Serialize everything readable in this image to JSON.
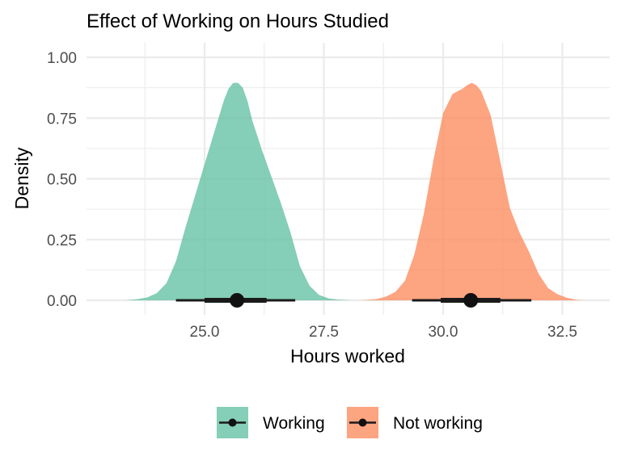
{
  "chart_data": {
    "type": "area",
    "title": "Effect of Working on Hours Studied",
    "xlabel": "Hours worked",
    "ylabel": "Density",
    "xlim": [
      23.0,
      33.2
    ],
    "ylim": [
      -0.04,
      1.08
    ],
    "x_ticks": [
      25.0,
      27.5,
      30.0,
      32.5
    ],
    "x_tick_labels": [
      "25.0",
      "27.5",
      "30.0",
      "32.5"
    ],
    "y_ticks": [
      0.0,
      0.25,
      0.5,
      0.75,
      1.0
    ],
    "y_tick_labels": [
      "0.00",
      "0.25",
      "0.50",
      "0.75",
      "1.00"
    ],
    "grid": true,
    "legend_position": "bottom",
    "series": [
      {
        "name": "Working",
        "color": "#66c2a5",
        "density": {
          "x": [
            23.35,
            23.6,
            23.8,
            24.0,
            24.2,
            24.4,
            24.6,
            24.8,
            25.0,
            25.2,
            25.4,
            25.5,
            25.6,
            25.7,
            25.8,
            25.9,
            26.0,
            26.2,
            26.4,
            26.6,
            26.8,
            27.0,
            27.2,
            27.4,
            27.6,
            27.8,
            28.0,
            28.1
          ],
          "y": [
            0.0,
            0.005,
            0.012,
            0.03,
            0.07,
            0.16,
            0.3,
            0.43,
            0.56,
            0.69,
            0.82,
            0.87,
            0.895,
            0.895,
            0.875,
            0.82,
            0.74,
            0.62,
            0.51,
            0.4,
            0.28,
            0.14,
            0.06,
            0.022,
            0.008,
            0.003,
            0.001,
            0.0
          ]
        },
        "point": 25.68,
        "interval_66": [
          25.0,
          26.3
        ],
        "interval_95": [
          24.4,
          26.9
        ]
      },
      {
        "name": "Not working",
        "color": "#fc8d62",
        "density": {
          "x": [
            28.3,
            28.6,
            28.8,
            29.0,
            29.2,
            29.4,
            29.6,
            29.8,
            30.0,
            30.2,
            30.4,
            30.5,
            30.6,
            30.7,
            30.8,
            31.0,
            31.2,
            31.4,
            31.6,
            31.8,
            32.0,
            32.2,
            32.4,
            32.6,
            32.8,
            32.95
          ],
          "y": [
            0.0,
            0.005,
            0.015,
            0.035,
            0.08,
            0.19,
            0.36,
            0.58,
            0.77,
            0.85,
            0.87,
            0.885,
            0.895,
            0.885,
            0.86,
            0.76,
            0.57,
            0.38,
            0.28,
            0.2,
            0.11,
            0.05,
            0.025,
            0.01,
            0.002,
            0.0
          ]
        },
        "point": 30.58,
        "interval_66": [
          29.95,
          31.2
        ],
        "interval_95": [
          29.35,
          31.85
        ]
      }
    ]
  }
}
